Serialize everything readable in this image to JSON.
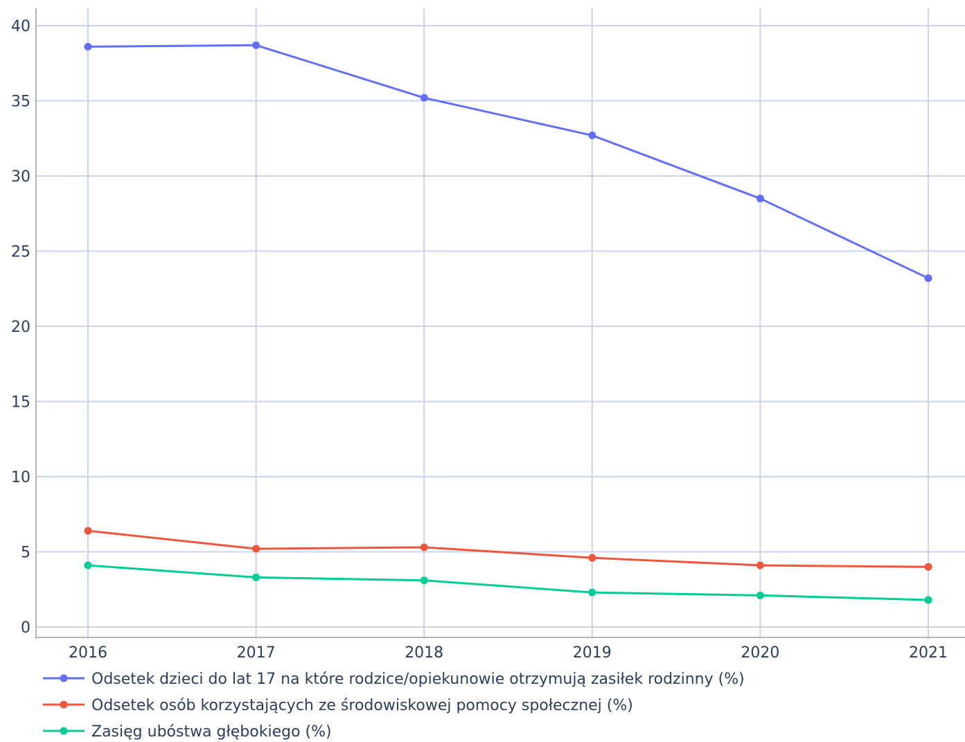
{
  "chart_data": {
    "type": "line",
    "title": "",
    "xlabel": "",
    "ylabel": "",
    "x": [
      "2016",
      "2017",
      "2018",
      "2019",
      "2020",
      "2021"
    ],
    "ylim": [
      0,
      40
    ],
    "yticks": [
      "0",
      "5",
      "10",
      "15",
      "20",
      "25",
      "30",
      "35",
      "40"
    ],
    "grid": true,
    "legend_position": "bottom-left",
    "series": [
      {
        "name": "Odsetek dzieci do lat 17 na które rodzice/opiekunowie otrzymują zasiłek rodzinny (%)",
        "color": "#636efa",
        "values": [
          38.6,
          38.7,
          35.2,
          32.7,
          28.5,
          23.2
        ]
      },
      {
        "name": "Odsetek osób korzystających ze środowiskowej pomocy społecznej (%)",
        "color": "#ef553b",
        "values": [
          6.4,
          5.2,
          5.3,
          4.6,
          4.1,
          4.0
        ]
      },
      {
        "name": "Zasięg ubóstwa głębokiego (%)",
        "color": "#00cc96",
        "values": [
          4.1,
          3.3,
          3.1,
          2.3,
          2.1,
          1.8
        ]
      }
    ]
  }
}
